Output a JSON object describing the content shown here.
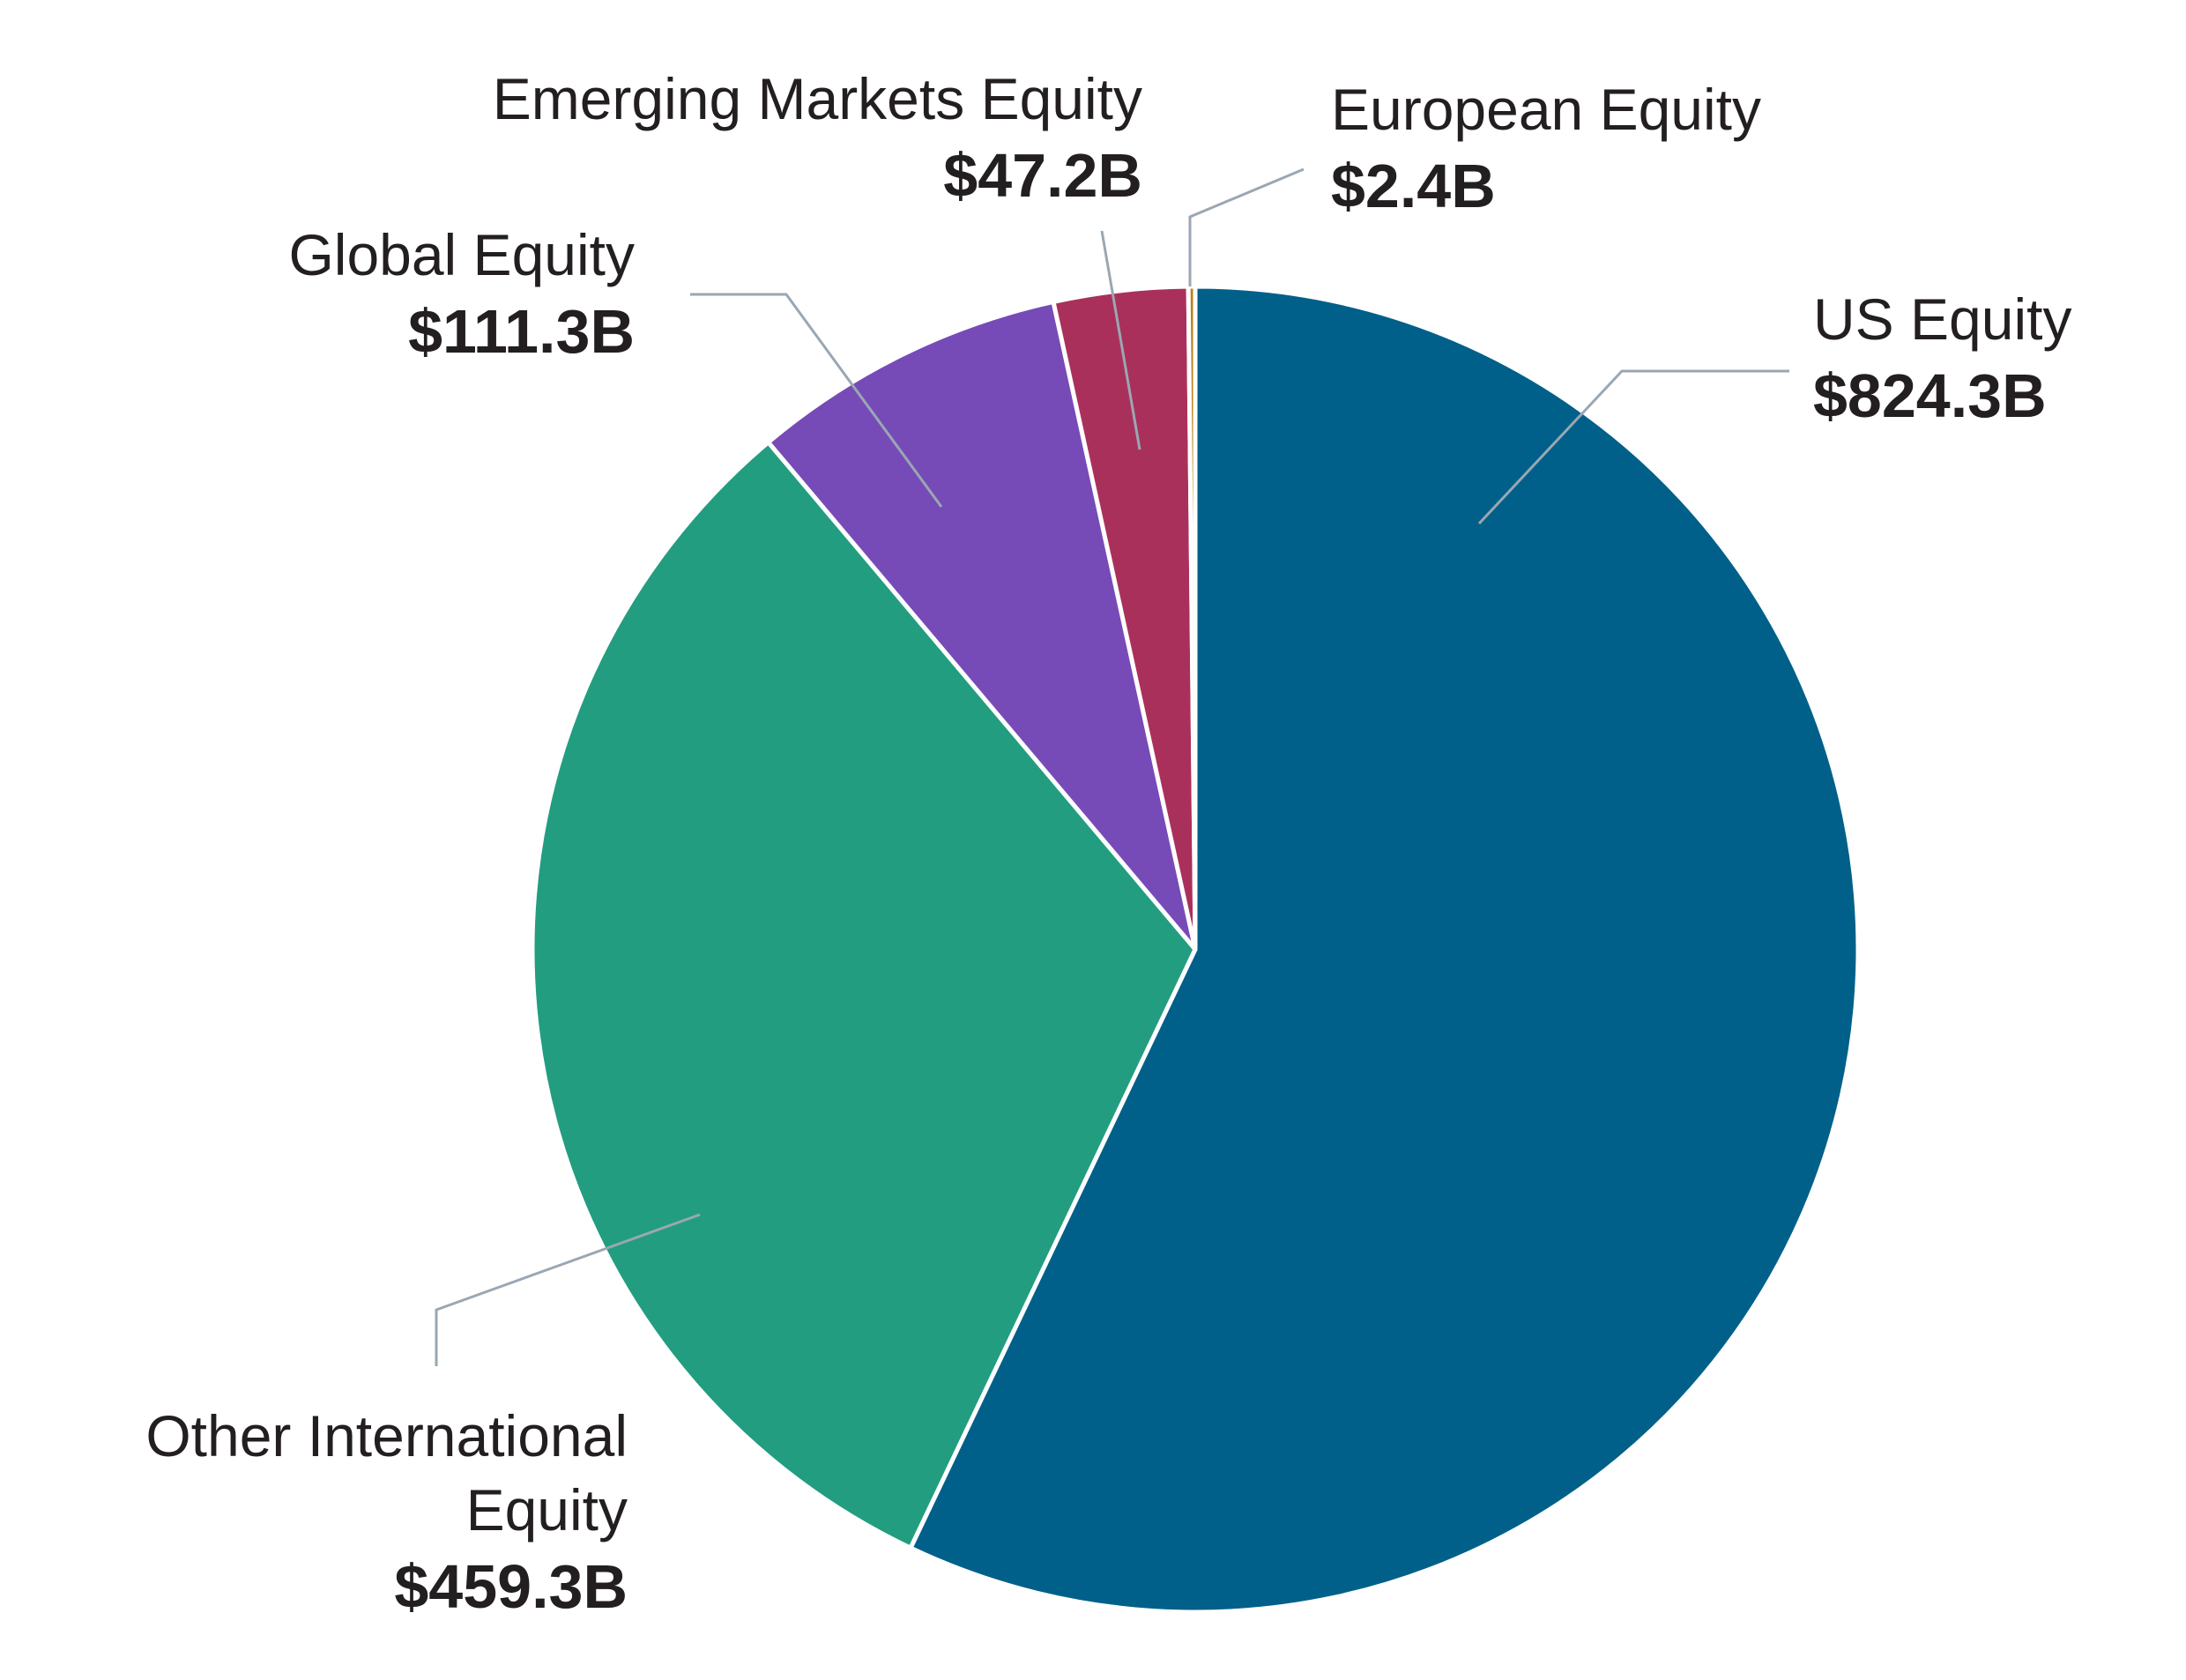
{
  "chart_data": {
    "type": "pie",
    "slices": [
      {
        "label": "US Equity",
        "value_label": "$824.3B",
        "value": 824.3,
        "color": "#00608a"
      },
      {
        "label": "Other International Equity",
        "label_lines": [
          "Other International",
          "Equity"
        ],
        "value_label": "$459.3B",
        "value": 459.3,
        "color": "#229d80"
      },
      {
        "label": "Global Equity",
        "value_label": "$111.3B",
        "value": 111.3,
        "color": "#764bb8"
      },
      {
        "label": "Emerging Markets Equity",
        "value_label": "$47.2B",
        "value": 47.2,
        "color": "#aa305c"
      },
      {
        "label": "European Equity",
        "value_label": "$2.4B",
        "value": 2.4,
        "color": "#b9831a"
      }
    ],
    "start": "12 o'clock",
    "direction": "clockwise",
    "legend": "none"
  }
}
